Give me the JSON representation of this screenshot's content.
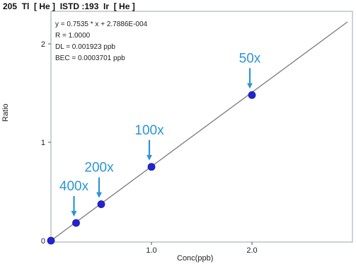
{
  "chart_data": {
    "type": "scatter",
    "title": "205  Tl  [ He ]  ISTD :193  Ir  [ He ]",
    "xlabel": "Conc(ppb)",
    "ylabel": "Ratio",
    "xlim": [
      0,
      3.0
    ],
    "ylim": [
      0,
      2.3
    ],
    "x_ticks": [
      1.0,
      2.0
    ],
    "x_tick_labels": [
      "1.0",
      "2.0"
    ],
    "y_ticks": [
      0,
      1,
      2
    ],
    "y_tick_labels": [
      "0",
      "1",
      "2"
    ],
    "grid": false,
    "legend": "none",
    "series": [
      {
        "x": [
          0,
          0.25,
          0.5,
          1.0,
          2.0
        ],
        "y": [
          0.0,
          0.18,
          0.37,
          0.75,
          1.48
        ]
      }
    ],
    "fit_line": {
      "slope": 0.7535,
      "intercept": 0.00027886
    },
    "annotations": [
      "y = 0.7535 * x  + 2.7886E-004",
      "R = 1.0000",
      "DL = 0.001923 ppb",
      "BEC = 0.0003701 ppb"
    ],
    "callouts": [
      {
        "label": "400x",
        "x": 0.25,
        "y": 0.18
      },
      {
        "label": "200x",
        "x": 0.5,
        "y": 0.37
      },
      {
        "label": "100x",
        "x": 1.0,
        "y": 0.75
      },
      {
        "label": "50x",
        "x": 2.0,
        "y": 1.48
      }
    ],
    "colors": {
      "point": "#2323d6",
      "fit_line": "#7a7a7a",
      "callout": "#2b95d6",
      "axis": "#555555"
    }
  }
}
